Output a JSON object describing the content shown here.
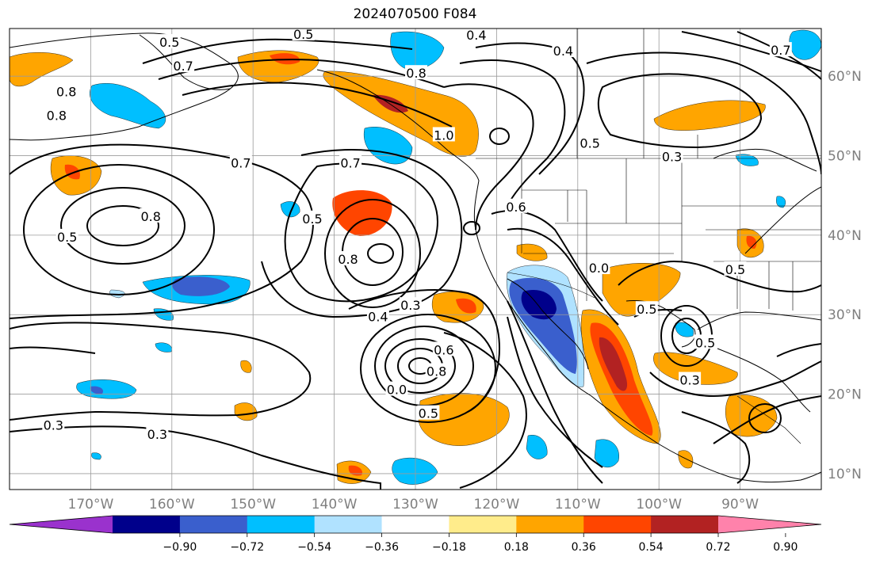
{
  "title": "2024070500 F084",
  "map": {
    "projection": "Equirectangular",
    "extent": {
      "lon": [
        -180,
        -80
      ],
      "lat": [
        8,
        66
      ]
    },
    "lon_ticks": [
      {
        "value": -170,
        "label": "170°W"
      },
      {
        "value": -160,
        "label": "160°W"
      },
      {
        "value": -150,
        "label": "150°W"
      },
      {
        "value": -140,
        "label": "140°W"
      },
      {
        "value": -130,
        "label": "130°W"
      },
      {
        "value": -120,
        "label": "120°W"
      },
      {
        "value": -110,
        "label": "110°W"
      },
      {
        "value": -100,
        "label": "100°W"
      },
      {
        "value": -90,
        "label": "90°W"
      }
    ],
    "lat_ticks": [
      {
        "value": 60,
        "label": "60°N"
      },
      {
        "value": 50,
        "label": "50°N"
      },
      {
        "value": 40,
        "label": "40°N"
      },
      {
        "value": 30,
        "label": "30°N"
      },
      {
        "value": 20,
        "label": "20°N"
      },
      {
        "value": 10,
        "label": "10°N"
      }
    ],
    "gridlines": true,
    "line_color": "#000000",
    "grid_color": "#9b9b9b"
  },
  "colorbar": {
    "orientation": "horizontal",
    "extend": "both",
    "colors": [
      "#9a32cd",
      "#00008b",
      "#3a5fcd",
      "#00bfff",
      "#b0e2ff",
      "#ffffff",
      "#ffec8b",
      "#ffa500",
      "#ff4500",
      "#b22222",
      "#ff82ab"
    ],
    "boundaries": [
      -0.9,
      -0.72,
      -0.54,
      -0.36,
      -0.18,
      0.18,
      0.36,
      0.54,
      0.72,
      0.9
    ],
    "tick_labels": [
      "−0.90",
      "−0.72",
      "−0.54",
      "−0.36",
      "−0.18",
      "0.18",
      "0.36",
      "0.54",
      "0.72",
      "0.90"
    ]
  },
  "contour_labels": [
    {
      "text": "0.5",
      "lon": -160.3,
      "lat": 64.2
    },
    {
      "text": "0.7",
      "lon": -158.6,
      "lat": 61.2
    },
    {
      "text": "0.8",
      "lon": -173.0,
      "lat": 58.0
    },
    {
      "text": "0.8",
      "lon": -174.2,
      "lat": 55.0
    },
    {
      "text": "0.7",
      "lon": -151.5,
      "lat": 49.0
    },
    {
      "text": "0.5",
      "lon": -143.8,
      "lat": 65.2
    },
    {
      "text": "0.8",
      "lon": -129.9,
      "lat": 60.3
    },
    {
      "text": "0.4",
      "lon": -122.5,
      "lat": 65.1
    },
    {
      "text": "0.4",
      "lon": -111.8,
      "lat": 63.1
    },
    {
      "text": "0.7",
      "lon": -85.0,
      "lat": 63.2
    },
    {
      "text": "1.0",
      "lon": -126.5,
      "lat": 52.5
    },
    {
      "text": "0.5",
      "lon": -108.5,
      "lat": 51.5
    },
    {
      "text": "0.3",
      "lon": -98.4,
      "lat": 49.8
    },
    {
      "text": "0.7",
      "lon": -138.0,
      "lat": 49.0
    },
    {
      "text": "0.5",
      "lon": -142.7,
      "lat": 42.0
    },
    {
      "text": "0.6",
      "lon": -117.6,
      "lat": 43.5
    },
    {
      "text": "0.8",
      "lon": -162.6,
      "lat": 42.3
    },
    {
      "text": "0.5",
      "lon": -172.9,
      "lat": 39.7
    },
    {
      "text": "0.8",
      "lon": -138.3,
      "lat": 36.9
    },
    {
      "text": "0.4",
      "lon": -134.6,
      "lat": 29.7
    },
    {
      "text": "0.3",
      "lon": -130.6,
      "lat": 31.1
    },
    {
      "text": "0.6",
      "lon": -126.5,
      "lat": 25.5
    },
    {
      "text": "0.8",
      "lon": -127.4,
      "lat": 22.8
    },
    {
      "text": "0.0",
      "lon": -132.3,
      "lat": 20.5
    },
    {
      "text": "0.5",
      "lon": -128.4,
      "lat": 17.5
    },
    {
      "text": "0.3",
      "lon": -174.6,
      "lat": 16.0
    },
    {
      "text": "0.3",
      "lon": -161.8,
      "lat": 14.9
    },
    {
      "text": "0.0",
      "lon": -107.4,
      "lat": 35.8
    },
    {
      "text": "0.5",
      "lon": -101.5,
      "lat": 30.6
    },
    {
      "text": "0.5",
      "lon": -90.6,
      "lat": 35.6
    },
    {
      "text": "0.5",
      "lon": -94.3,
      "lat": 26.4
    },
    {
      "text": "0.3",
      "lon": -96.2,
      "lat": 21.7
    }
  ]
}
